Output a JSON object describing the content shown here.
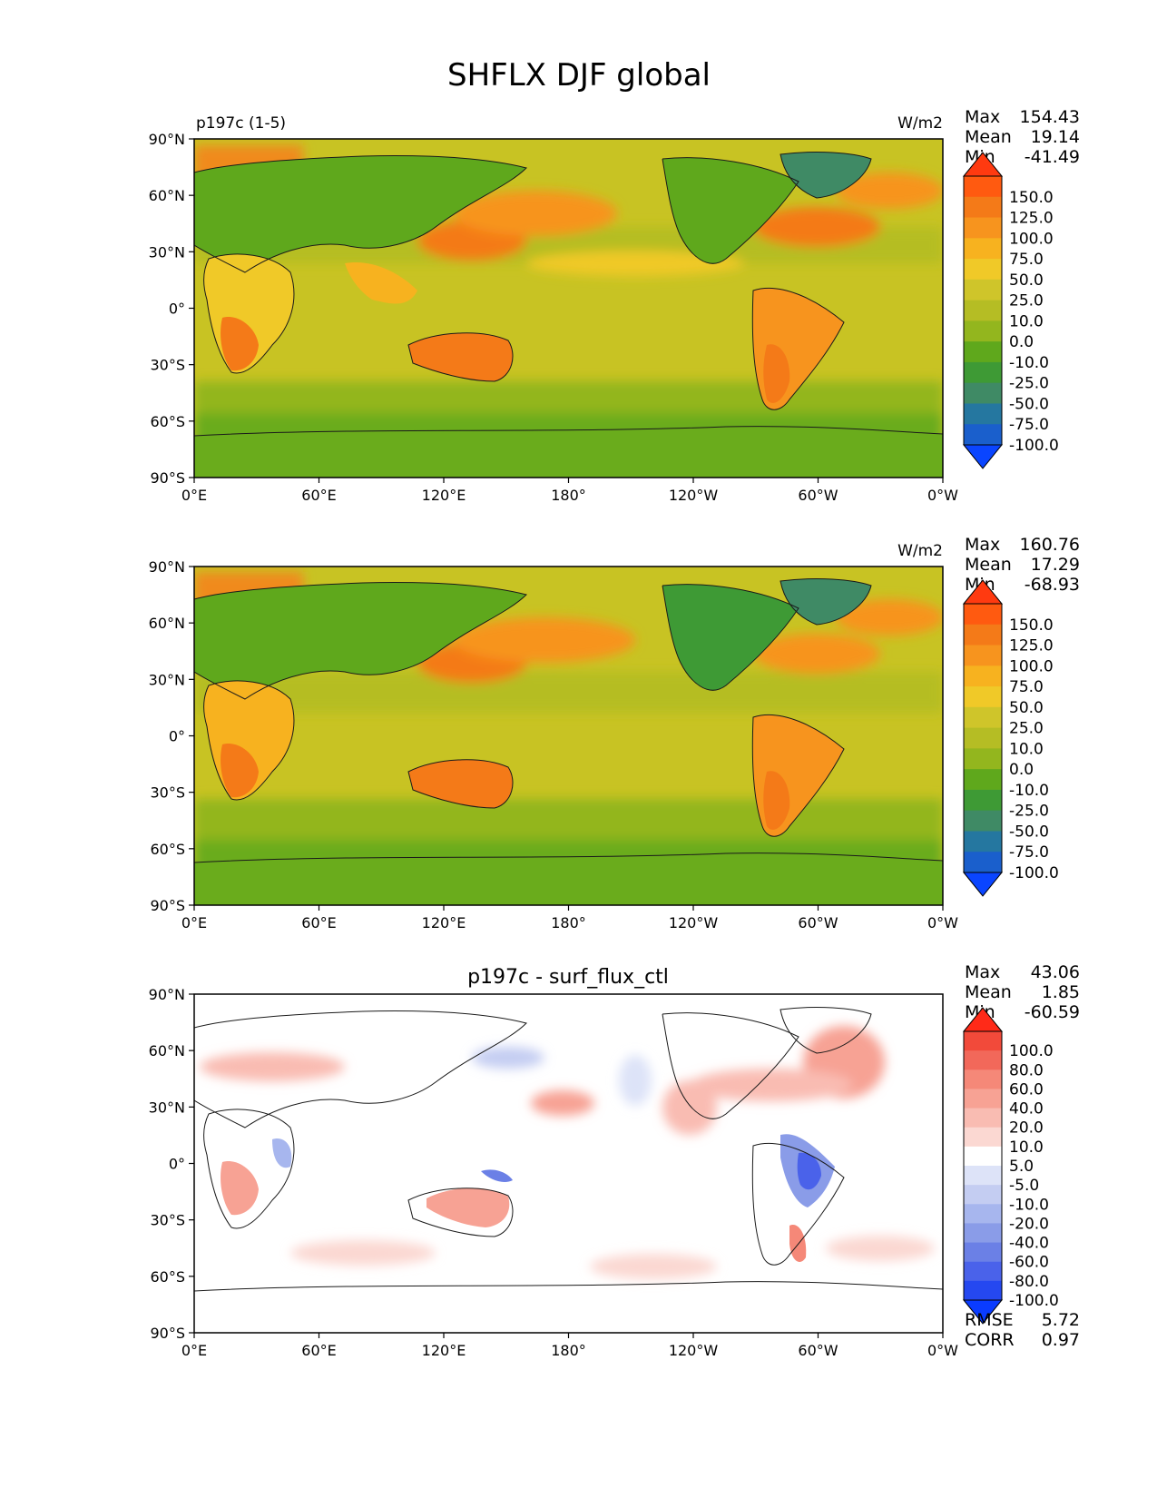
{
  "title": "SHFLX DJF global",
  "x_ticks": [
    "0°E",
    "60°E",
    "120°E",
    "180°",
    "120°W",
    "60°W",
    "0°W"
  ],
  "y_ticks": [
    "90°N",
    "60°N",
    "30°N",
    "0°",
    "30°S",
    "60°S",
    "90°S"
  ],
  "colors": {
    "ocean_base": "#c8c323",
    "land_mid": "#5fa81c",
    "diff_pos": "#f5a79b",
    "diff_neg": "#aab8ee"
  },
  "panels": [
    {
      "left_label": "p197c (1-5)",
      "center_label": "",
      "units": "W/m2",
      "stats": [
        {
          "label": "Max",
          "value": "154.43"
        },
        {
          "label": "Mean",
          "value": "19.14"
        },
        {
          "label": "Min",
          "value": "-41.49"
        }
      ],
      "colorbar": {
        "labels": [
          "150.0",
          "125.0",
          "100.0",
          "75.0",
          "50.0",
          "25.0",
          "10.0",
          "0.0",
          "-10.0",
          "-25.0",
          "-50.0",
          "-75.0",
          "-100.0"
        ],
        "colors": [
          "#ff3a10",
          "#ff5a10",
          "#f47a18",
          "#f7941e",
          "#f7b21f",
          "#f0c928",
          "#cfc52a",
          "#b5bd24",
          "#93b61e",
          "#5fa81c",
          "#3e9a35",
          "#3f8a65",
          "#2577a0",
          "#1a5fcc",
          "#0a45ff"
        ]
      },
      "footer": []
    },
    {
      "left_label": "",
      "center_label": "",
      "units": "W/m2",
      "stats": [
        {
          "label": "Max",
          "value": "160.76"
        },
        {
          "label": "Mean",
          "value": "17.29"
        },
        {
          "label": "Min",
          "value": "-68.93"
        }
      ],
      "colorbar": {
        "labels": [
          "150.0",
          "125.0",
          "100.0",
          "75.0",
          "50.0",
          "25.0",
          "10.0",
          "0.0",
          "-10.0",
          "-25.0",
          "-50.0",
          "-75.0",
          "-100.0"
        ],
        "colors": [
          "#ff3a10",
          "#ff5a10",
          "#f47a18",
          "#f7941e",
          "#f7b21f",
          "#f0c928",
          "#cfc52a",
          "#b5bd24",
          "#93b61e",
          "#5fa81c",
          "#3e9a35",
          "#3f8a65",
          "#2577a0",
          "#1a5fcc",
          "#0a45ff"
        ]
      },
      "footer": []
    },
    {
      "left_label": "",
      "center_label": "p197c - surf_flux_ctl",
      "units": "",
      "stats": [
        {
          "label": "Max",
          "value": "43.06"
        },
        {
          "label": "Mean",
          "value": "1.85"
        },
        {
          "label": "Min",
          "value": "-60.59"
        }
      ],
      "colorbar": {
        "labels": [
          "100.0",
          "80.0",
          "60.0",
          "40.0",
          "20.0",
          "10.0",
          "5.0",
          "-5.0",
          "-10.0",
          "-20.0",
          "-40.0",
          "-60.0",
          "-80.0",
          "-100.0"
        ],
        "colors": [
          "#ff2a18",
          "#f24a3a",
          "#f2685a",
          "#f58878",
          "#f7a294",
          "#f9bcb2",
          "#fbd8d2",
          "#ffffff",
          "#dde3f8",
          "#c4cdf2",
          "#a7b6ee",
          "#8a9ce8",
          "#6b80e6",
          "#4a62ea",
          "#2548f0",
          "#0a3cff"
        ]
      },
      "footer": [
        {
          "label": "RMSE",
          "value": "5.72"
        },
        {
          "label": "CORR",
          "value": "0.97"
        }
      ]
    }
  ]
}
